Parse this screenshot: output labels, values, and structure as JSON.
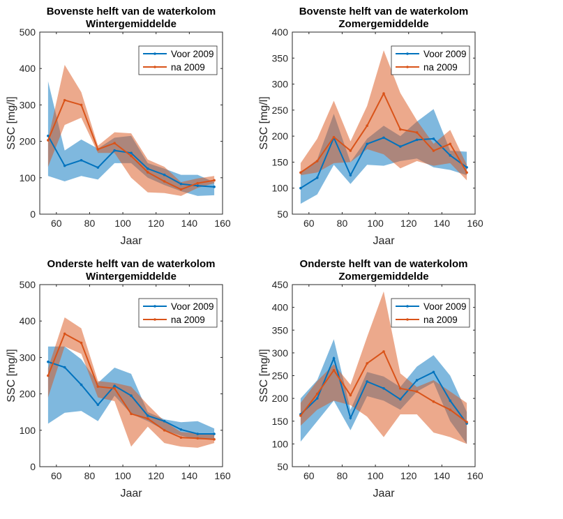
{
  "colors": {
    "voor": "#0072BD",
    "na": "#D95319",
    "band_voor": "#0072BD",
    "band_na": "#D95319",
    "axis": "#262626"
  },
  "chart_data": [
    {
      "type": "line",
      "title": "Bovenste helft van de waterkolom",
      "subtitle": "Wintergemiddelde",
      "xlabel": "Jaar",
      "ylabel": "SSC [mg/l]",
      "xlim": [
        50,
        160
      ],
      "ylim": [
        0,
        500
      ],
      "xticks": [
        "60",
        "80",
        "100",
        "120",
        "140",
        "160"
      ],
      "yticks": [
        "0",
        "100",
        "200",
        "300",
        "400",
        "500"
      ],
      "legend_position": "top-right",
      "grid": false,
      "series": [
        {
          "name": "Voor 2009",
          "x": [
            55,
            65,
            75,
            85,
            95,
            105,
            115,
            125,
            135,
            145,
            155
          ],
          "values": [
            215,
            133,
            148,
            128,
            175,
            168,
            125,
            108,
            83,
            78,
            75
          ],
          "lower": [
            105,
            90,
            105,
            95,
            140,
            140,
            100,
            80,
            63,
            50,
            52
          ],
          "upper": [
            365,
            175,
            205,
            180,
            210,
            215,
            140,
            125,
            108,
            108,
            88
          ]
        },
        {
          "name": "na 2009",
          "x": [
            55,
            65,
            75,
            85,
            95,
            105,
            115,
            125,
            135,
            145,
            155
          ],
          "values": [
            203,
            313,
            300,
            178,
            195,
            160,
            115,
            90,
            68,
            85,
            93
          ],
          "lower": [
            130,
            245,
            265,
            168,
            168,
            100,
            60,
            58,
            50,
            72,
            85
          ],
          "upper": [
            205,
            410,
            335,
            188,
            225,
            222,
            150,
            130,
            88,
            98,
            105
          ]
        }
      ]
    },
    {
      "type": "line",
      "title": "Bovenste helft van de waterkolom",
      "subtitle": "Zomergemiddelde",
      "xlabel": "Jaar",
      "ylabel": "SSC [mg/l]",
      "xlim": [
        50,
        160
      ],
      "ylim": [
        50,
        400
      ],
      "xticks": [
        "60",
        "80",
        "100",
        "120",
        "140",
        "160"
      ],
      "yticks": [
        "50",
        "100",
        "150",
        "200",
        "250",
        "300",
        "350",
        "400"
      ],
      "legend_position": "top-right",
      "grid": false,
      "series": [
        {
          "name": "Voor 2009",
          "x": [
            55,
            65,
            75,
            85,
            95,
            105,
            115,
            125,
            135,
            145,
            155
          ],
          "values": [
            100,
            120,
            197,
            125,
            185,
            197,
            180,
            193,
            195,
            163,
            140
          ],
          "lower": [
            70,
            88,
            145,
            108,
            145,
            143,
            152,
            157,
            140,
            135,
            125
          ],
          "upper": [
            130,
            155,
            243,
            150,
            195,
            220,
            200,
            228,
            252,
            172,
            170
          ]
        },
        {
          "name": "na 2009",
          "x": [
            55,
            65,
            75,
            85,
            95,
            105,
            115,
            125,
            135,
            145,
            155
          ],
          "values": [
            130,
            152,
            198,
            172,
            220,
            282,
            213,
            207,
            172,
            185,
            130
          ],
          "lower": [
            125,
            130,
            148,
            150,
            175,
            165,
            138,
            152,
            143,
            148,
            115
          ],
          "upper": [
            148,
            195,
            268,
            190,
            258,
            365,
            283,
            230,
            185,
            212,
            145
          ]
        }
      ]
    },
    {
      "type": "line",
      "title": "Onderste helft van de waterkolom",
      "subtitle": "Wintergemiddelde",
      "xlabel": "Jaar",
      "ylabel": "SSC [mg/l]",
      "xlim": [
        50,
        160
      ],
      "ylim": [
        0,
        500
      ],
      "xticks": [
        "60",
        "80",
        "100",
        "120",
        "140",
        "160"
      ],
      "yticks": [
        "0",
        "100",
        "200",
        "300",
        "400",
        "500"
      ],
      "legend_position": "top-right",
      "grid": false,
      "series": [
        {
          "name": "Voor 2009",
          "x": [
            55,
            65,
            75,
            85,
            95,
            105,
            115,
            125,
            135,
            145,
            155
          ],
          "values": [
            288,
            273,
            225,
            170,
            222,
            195,
            140,
            125,
            102,
            90,
            90
          ],
          "lower": [
            118,
            148,
            153,
            125,
            195,
            145,
            125,
            100,
            85,
            75,
            75
          ],
          "upper": [
            330,
            330,
            295,
            230,
            272,
            255,
            150,
            130,
            122,
            125,
            105
          ]
        },
        {
          "name": "na 2009",
          "x": [
            55,
            65,
            75,
            85,
            95,
            105,
            115,
            125,
            135,
            145,
            155
          ],
          "values": [
            250,
            365,
            340,
            220,
            215,
            145,
            132,
            100,
            80,
            78,
            75
          ],
          "lower": [
            190,
            330,
            310,
            190,
            180,
            55,
            110,
            65,
            55,
            52,
            65
          ],
          "upper": [
            270,
            410,
            380,
            235,
            230,
            220,
            170,
            125,
            95,
            92,
            90
          ]
        }
      ]
    },
    {
      "type": "line",
      "title": "Onderste helft van de waterkolom",
      "subtitle": "Zomergemiddelde",
      "xlabel": "Jaar",
      "ylabel": "SSC [mg/l]",
      "xlim": [
        50,
        160
      ],
      "ylim": [
        50,
        450
      ],
      "xticks": [
        "60",
        "80",
        "100",
        "120",
        "140",
        "160"
      ],
      "yticks": [
        "50",
        "100",
        "150",
        "200",
        "250",
        "300",
        "350",
        "400",
        "450"
      ],
      "legend_position": "top-right",
      "grid": false,
      "series": [
        {
          "name": "Voor 2009",
          "x": [
            55,
            65,
            75,
            85,
            95,
            105,
            115,
            125,
            135,
            145,
            155
          ],
          "values": [
            165,
            200,
            288,
            157,
            237,
            222,
            198,
            240,
            258,
            195,
            145
          ],
          "lower": [
            105,
            150,
            195,
            130,
            205,
            195,
            175,
            215,
            235,
            150,
            100
          ],
          "upper": [
            200,
            240,
            330,
            175,
            258,
            248,
            225,
            270,
            295,
            250,
            170
          ]
        },
        {
          "name": "na 2009",
          "x": [
            55,
            65,
            75,
            85,
            95,
            105,
            115,
            125,
            135,
            145,
            155
          ],
          "values": [
            162,
            210,
            262,
            207,
            277,
            303,
            222,
            215,
            193,
            175,
            148
          ],
          "lower": [
            140,
            175,
            195,
            185,
            160,
            115,
            165,
            165,
            125,
            115,
            100
          ],
          "upper": [
            190,
            238,
            275,
            230,
            335,
            435,
            255,
            225,
            240,
            215,
            190
          ]
        }
      ]
    }
  ]
}
